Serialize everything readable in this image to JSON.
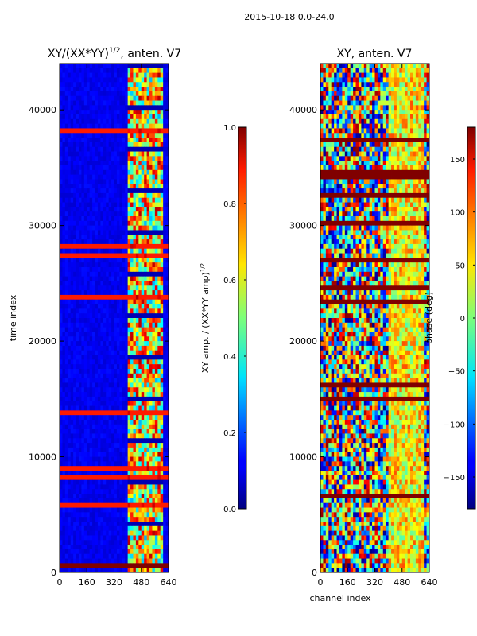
{
  "figure": {
    "suptitle": "2015-10-18 0.0-24.0"
  },
  "chart_data": [
    {
      "type": "heatmap",
      "title_main": "XY/(XX*YY)",
      "title_exp": "1/2",
      "title_tail": ", anten. V7",
      "xlabel": "",
      "ylabel": "time index",
      "xlim": [
        0,
        640
      ],
      "ylim": [
        0,
        44000
      ],
      "xticks": [
        0,
        160,
        320,
        480,
        640
      ],
      "yticks": [
        0,
        10000,
        20000,
        30000,
        40000
      ],
      "xtick_labels": [
        "0",
        "160",
        "320",
        "480",
        "640"
      ],
      "ytick_labels": [
        "0",
        "10000",
        "20000",
        "30000",
        "40000"
      ],
      "colorbar": {
        "label_main": "XY amp. / (XX*YY amp)",
        "label_exp": "1/2",
        "range": [
          0.0,
          1.0
        ],
        "ticks": [
          0.0,
          0.2,
          0.4,
          0.6,
          0.8,
          1.0
        ],
        "tick_labels": [
          "0.0",
          "0.2",
          "0.4",
          "0.6",
          "0.8",
          "1.0"
        ],
        "colormap": "jet"
      },
      "description_values": {
        "low_band_channels": [
          0,
          400
        ],
        "low_band_value": 0.08,
        "active_band_channels": [
          400,
          600
        ],
        "active_band_value_range": [
          0.3,
          0.95
        ],
        "saturated_rows_time": [
          500,
          900
        ]
      }
    },
    {
      "type": "heatmap",
      "title": "XY, anten. V7",
      "xlabel": "channel index",
      "ylabel": "",
      "xlim": [
        0,
        640
      ],
      "ylim": [
        0,
        44000
      ],
      "xticks": [
        0,
        160,
        320,
        480,
        640
      ],
      "yticks": [
        0,
        10000,
        20000,
        30000,
        40000
      ],
      "xtick_labels": [
        "0",
        "160",
        "320",
        "480",
        "640"
      ],
      "ytick_labels": [
        "0",
        "10000",
        "20000",
        "30000",
        "40000"
      ],
      "colorbar": {
        "label": "phase (deg)",
        "range": [
          -180,
          180
        ],
        "ticks": [
          -150,
          -100,
          -50,
          0,
          50,
          100,
          150
        ],
        "tick_labels": [
          "−150",
          "−100",
          "−50",
          "0",
          "50",
          "100",
          "150"
        ],
        "colormap": "jet"
      },
      "description_values": {
        "active_band_channels": [
          400,
          600
        ],
        "phase_range_deg": [
          -180,
          180
        ]
      }
    }
  ]
}
